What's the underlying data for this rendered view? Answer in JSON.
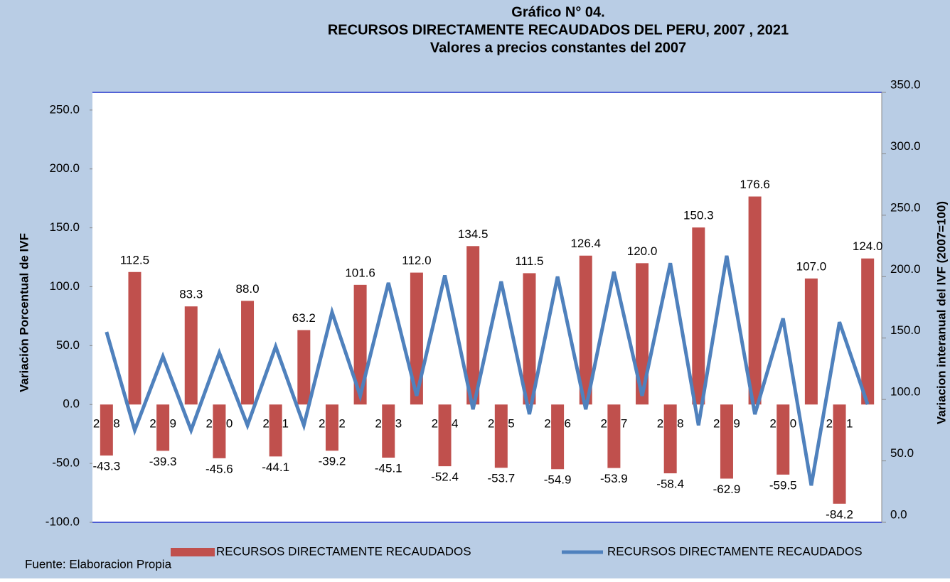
{
  "chart_data": {
    "type": "bar",
    "title": "Gráfico N° 04.",
    "subtitle": [
      "RECURSOS DIRECTAMENTE RECAUDADOS DEL PERU, 2007 , 2021",
      "Valores a precios constantes del 2007"
    ],
    "ylabel": "Variación Porcentual de IVF",
    "y2label": "Variacion interanual del  IVF  (2007=100)",
    "source": "Fuente: Elaboracion Propia",
    "categories": [
      "2008",
      null,
      "2009",
      null,
      "2010",
      null,
      "2011",
      null,
      "2012",
      null,
      "2013",
      null,
      "2014",
      null,
      "2015",
      null,
      "2016",
      null,
      "2017",
      null,
      "2018",
      null,
      "2019",
      null,
      "2020",
      null,
      "2021",
      null
    ],
    "series": [
      {
        "name": "RECURSOS DIRECTAMENTE RECAUDADOS",
        "type": "bar",
        "axis": "y",
        "color": "#c0504d",
        "values": [
          -43.3,
          112.5,
          -39.3,
          83.3,
          -45.6,
          88.0,
          -44.1,
          63.2,
          -39.2,
          101.6,
          -45.1,
          112.0,
          -52.4,
          134.5,
          -53.7,
          111.5,
          -54.9,
          126.4,
          -53.9,
          120.0,
          -58.4,
          150.3,
          -62.9,
          176.6,
          -59.5,
          107.0,
          -84.2,
          124.0
        ],
        "value_labels": [
          "-43.3",
          "112.5",
          "-39.3",
          "83.3",
          "-45.6",
          "88.0",
          "-44.1",
          "63.2",
          "-39.2",
          "101.6",
          "-45.1",
          "112.0",
          "-52.4",
          "134.5",
          "-53.7",
          "111.5",
          "-54.9",
          "126.4",
          "-53.9",
          "120.0",
          "-58.4",
          "150.3",
          "-62.9",
          "176.6",
          "-59.5",
          "107.0",
          "-84.2",
          "124.0"
        ]
      },
      {
        "name": "RECURSOS DIRECTAMENTE RECAUDADOS",
        "type": "line",
        "axis": "y2",
        "color": "#4f81bd",
        "values": [
          155,
          75,
          135,
          75,
          138,
          79,
          143,
          79,
          171,
          103,
          195,
          103,
          201,
          92,
          196,
          88,
          200,
          92,
          204,
          103,
          211,
          79,
          217,
          88,
          166,
          30,
          163,
          96
        ]
      }
    ],
    "ylim": [
      -100,
      265
    ],
    "yticks": [
      {
        "value": -100,
        "label": "-100.0"
      },
      {
        "value": -50,
        "label": "-50.0"
      },
      {
        "value": 0,
        "label": "0.0"
      },
      {
        "value": 50,
        "label": "50.0"
      },
      {
        "value": 100,
        "label": "100.0"
      },
      {
        "value": 150,
        "label": "150.0"
      },
      {
        "value": 200,
        "label": "200.0"
      },
      {
        "value": 250,
        "label": "250.0"
      }
    ],
    "y2lim": [
      0,
      350
    ],
    "y2ticks": [
      {
        "value": 0,
        "label": "0.0"
      },
      {
        "value": 50,
        "label": "50.0"
      },
      {
        "value": 100,
        "label": "100.0"
      },
      {
        "value": 150,
        "label": "150.0"
      },
      {
        "value": 200,
        "label": "200.0"
      },
      {
        "value": 250,
        "label": "250.0"
      },
      {
        "value": 300,
        "label": "300.0"
      },
      {
        "value": 350,
        "label": "350.0"
      }
    ],
    "legend": "bottom"
  }
}
